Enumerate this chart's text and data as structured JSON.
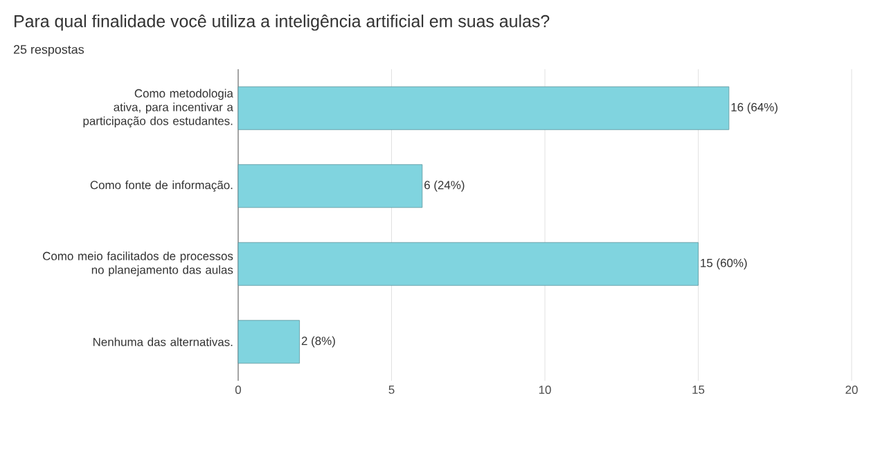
{
  "chart_data": {
    "type": "bar",
    "orientation": "horizontal",
    "title": "Para qual finalidade você utiliza a inteligência artificial em suas aulas?",
    "subtitle": "25 respostas",
    "categories": [
      "Como metodologia ativa, para incentivar a participação dos estudantes.",
      "Como fonte de informação.",
      "Como meio facilitados de processos no planejamento das aulas",
      "Nenhuma das alternativas."
    ],
    "values": [
      16,
      6,
      15,
      2
    ],
    "color": "#80d4df",
    "value_labels": [
      "16 (64%)",
      "6 (24%)",
      "15 (60%)",
      "2 (8%)"
    ],
    "xlim": [
      0,
      20
    ],
    "xticks": [
      0,
      5,
      10,
      15,
      20
    ],
    "grid": "x"
  }
}
